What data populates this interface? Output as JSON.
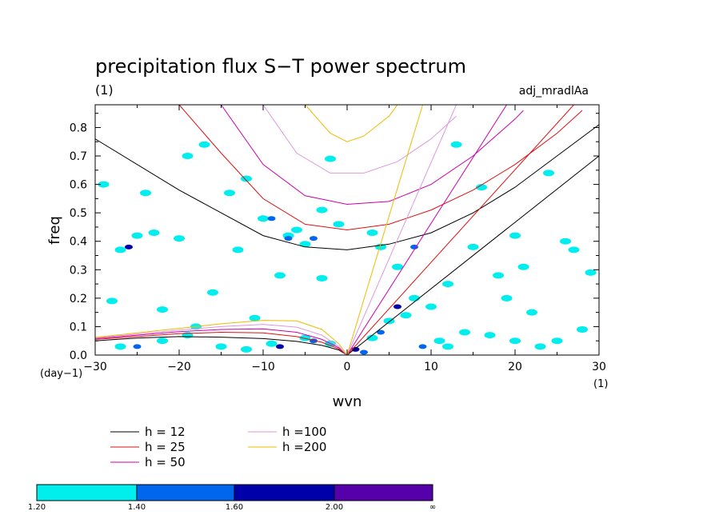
{
  "chart_data": {
    "type": "contour",
    "title": "precipitation flux S−T power spectrum",
    "subtitle": "(1)",
    "corner_label": "adj_mradlAa",
    "xlabel": "wvn",
    "ylabel": "freq",
    "x_unit": "(1)",
    "y_unit": "(day−1)",
    "xlim": [
      -30,
      30
    ],
    "ylim": [
      0,
      0.88
    ],
    "xticks": [
      -30,
      -20,
      -10,
      0,
      10,
      20,
      30
    ],
    "yticks": [
      0.0,
      0.1,
      0.2,
      0.3,
      0.4,
      0.5,
      0.6,
      0.7,
      0.8
    ],
    "xtick_labels": [
      "−30",
      "−20",
      "−10",
      "0",
      "10",
      "20",
      "30"
    ],
    "ytick_labels": [
      "0.0",
      "0.1",
      "0.2",
      "0.3",
      "0.4",
      "0.5",
      "0.6",
      "0.7",
      "0.8"
    ],
    "grid": false,
    "colors": {
      "h12": "#000000",
      "h25": "#dd1111",
      "h50": "#cc00aa",
      "h100": "#dd99dd",
      "h200": "#eebb00",
      "level1": "#00eeee",
      "level2": "#0066ee",
      "level3": "#0000aa",
      "level4": "#5500aa"
    },
    "dispersion_legend": [
      {
        "label": "h = 12",
        "color": "#000000"
      },
      {
        "label": "h = 25",
        "color": "#dd1111"
      },
      {
        "label": "h = 50",
        "color": "#cc00aa"
      },
      {
        "label": "h =100",
        "color": "#dd99dd"
      },
      {
        "label": "h =200",
        "color": "#eebb00"
      }
    ],
    "colorbar": {
      "levels": [
        "1.20",
        "1.40",
        "1.60",
        "2.00",
        "∞"
      ],
      "colors": [
        "#00eeee",
        "#0066ee",
        "#0000aa",
        "#5500aa"
      ]
    },
    "curves": [
      {
        "name": "h = 12",
        "color": "#000000",
        "points": [
          [
            -30,
            0.76
          ],
          [
            -20,
            0.58
          ],
          [
            -10,
            0.42
          ],
          [
            -5,
            0.38
          ],
          [
            0,
            0.37
          ],
          [
            5,
            0.39
          ],
          [
            10,
            0.43
          ],
          [
            15,
            0.5
          ],
          [
            20,
            0.59
          ],
          [
            25,
            0.7
          ],
          [
            30,
            0.81
          ]
        ]
      },
      {
        "name": "h = 25",
        "color": "#dd1111",
        "points": [
          [
            -20,
            0.88
          ],
          [
            -15,
            0.71
          ],
          [
            -10,
            0.55
          ],
          [
            -5,
            0.46
          ],
          [
            0,
            0.44
          ],
          [
            5,
            0.46
          ],
          [
            10,
            0.51
          ],
          [
            15,
            0.58
          ],
          [
            20,
            0.67
          ],
          [
            25,
            0.78
          ],
          [
            28,
            0.86
          ]
        ]
      },
      {
        "name": "h = 50",
        "color": "#cc00aa",
        "points": [
          [
            -15,
            0.88
          ],
          [
            -10,
            0.67
          ],
          [
            -5,
            0.56
          ],
          [
            0,
            0.53
          ],
          [
            5,
            0.54
          ],
          [
            10,
            0.6
          ],
          [
            15,
            0.7
          ],
          [
            20,
            0.83
          ],
          [
            21,
            0.86
          ]
        ]
      },
      {
        "name": "h =100",
        "color": "#dd99dd",
        "points": [
          [
            -10,
            0.88
          ],
          [
            -6,
            0.71
          ],
          [
            -2,
            0.64
          ],
          [
            2,
            0.64
          ],
          [
            6,
            0.68
          ],
          [
            10,
            0.76
          ],
          [
            13,
            0.84
          ]
        ]
      },
      {
        "name": "h =200",
        "color": "#eebb00",
        "points": [
          [
            -5,
            0.88
          ],
          [
            -2,
            0.78
          ],
          [
            0,
            0.75
          ],
          [
            2,
            0.77
          ],
          [
            5,
            0.84
          ],
          [
            6,
            0.88
          ]
        ]
      },
      {
        "name": "h = 12",
        "color": "#000000",
        "points": [
          [
            0,
            0.0
          ],
          [
            30,
            0.7
          ]
        ]
      },
      {
        "name": "h = 25",
        "color": "#dd1111",
        "points": [
          [
            0,
            0.0
          ],
          [
            27,
            0.88
          ]
        ]
      },
      {
        "name": "h = 50",
        "color": "#cc00aa",
        "points": [
          [
            0,
            0.0
          ],
          [
            19,
            0.88
          ]
        ]
      },
      {
        "name": "h =100",
        "color": "#dd99dd",
        "points": [
          [
            0,
            0.0
          ],
          [
            13,
            0.88
          ]
        ]
      },
      {
        "name": "h =200",
        "color": "#eebb00",
        "points": [
          [
            0,
            0.0
          ],
          [
            9,
            0.88
          ]
        ]
      },
      {
        "name": "h = 12",
        "color": "#000000",
        "points": [
          [
            -30,
            0.05
          ],
          [
            -25,
            0.06
          ],
          [
            -20,
            0.065
          ],
          [
            -15,
            0.063
          ],
          [
            -10,
            0.058
          ],
          [
            -6,
            0.048
          ],
          [
            -3,
            0.034
          ],
          [
            -1,
            0.018
          ],
          [
            0,
            0.0
          ]
        ]
      },
      {
        "name": "h = 25",
        "color": "#dd1111",
        "points": [
          [
            -30,
            0.055
          ],
          [
            -25,
            0.065
          ],
          [
            -20,
            0.075
          ],
          [
            -15,
            0.08
          ],
          [
            -10,
            0.078
          ],
          [
            -6,
            0.065
          ],
          [
            -3,
            0.045
          ],
          [
            -1,
            0.022
          ],
          [
            0,
            0.0
          ]
        ]
      },
      {
        "name": "h = 50",
        "color": "#cc00aa",
        "points": [
          [
            -30,
            0.058
          ],
          [
            -25,
            0.07
          ],
          [
            -20,
            0.082
          ],
          [
            -15,
            0.09
          ],
          [
            -10,
            0.092
          ],
          [
            -6,
            0.08
          ],
          [
            -3,
            0.055
          ],
          [
            -1,
            0.026
          ],
          [
            0,
            0.0
          ]
        ]
      },
      {
        "name": "h =100",
        "color": "#dd99dd",
        "points": [
          [
            -30,
            0.06
          ],
          [
            -25,
            0.074
          ],
          [
            -20,
            0.088
          ],
          [
            -15,
            0.1
          ],
          [
            -10,
            0.108
          ],
          [
            -6,
            0.098
          ],
          [
            -3,
            0.07
          ],
          [
            -1,
            0.03
          ],
          [
            0,
            0.0
          ]
        ]
      },
      {
        "name": "h =200",
        "color": "#eebb00",
        "points": [
          [
            -30,
            0.062
          ],
          [
            -25,
            0.078
          ],
          [
            -20,
            0.094
          ],
          [
            -15,
            0.11
          ],
          [
            -10,
            0.122
          ],
          [
            -6,
            0.12
          ],
          [
            -3,
            0.09
          ],
          [
            -1,
            0.04
          ],
          [
            0,
            0.0
          ]
        ]
      }
    ],
    "contour_blobs": [
      {
        "x": -29,
        "y": 0.6,
        "level": 1
      },
      {
        "x": -27,
        "y": 0.37,
        "level": 1
      },
      {
        "x": -26,
        "y": 0.38,
        "level": 3
      },
      {
        "x": -25,
        "y": 0.42,
        "level": 1
      },
      {
        "x": -24,
        "y": 0.57,
        "level": 1
      },
      {
        "x": -23,
        "y": 0.43,
        "level": 1
      },
      {
        "x": -22,
        "y": 0.16,
        "level": 1
      },
      {
        "x": -20,
        "y": 0.41,
        "level": 1
      },
      {
        "x": -19,
        "y": 0.7,
        "level": 1
      },
      {
        "x": -17,
        "y": 0.74,
        "level": 1
      },
      {
        "x": -16,
        "y": 0.22,
        "level": 1
      },
      {
        "x": -14,
        "y": 0.57,
        "level": 1
      },
      {
        "x": -13,
        "y": 0.37,
        "level": 1
      },
      {
        "x": -12,
        "y": 0.62,
        "level": 1
      },
      {
        "x": -11,
        "y": 0.13,
        "level": 1
      },
      {
        "x": -10,
        "y": 0.48,
        "level": 1
      },
      {
        "x": -9,
        "y": 0.48,
        "level": 2
      },
      {
        "x": -8,
        "y": 0.28,
        "level": 1
      },
      {
        "x": -7,
        "y": 0.42,
        "level": 1
      },
      {
        "x": -7,
        "y": 0.41,
        "level": 2
      },
      {
        "x": -6,
        "y": 0.44,
        "level": 1
      },
      {
        "x": -5,
        "y": 0.39,
        "level": 1
      },
      {
        "x": -4,
        "y": 0.41,
        "level": 2
      },
      {
        "x": -3,
        "y": 0.27,
        "level": 1
      },
      {
        "x": -3,
        "y": 0.51,
        "level": 1
      },
      {
        "x": -2,
        "y": 0.69,
        "level": 1
      },
      {
        "x": -1,
        "y": 0.46,
        "level": 1
      },
      {
        "x": 3,
        "y": 0.43,
        "level": 1
      },
      {
        "x": 4,
        "y": 0.38,
        "level": 1
      },
      {
        "x": 6,
        "y": 0.31,
        "level": 1
      },
      {
        "x": 8,
        "y": 0.38,
        "level": 2
      },
      {
        "x": 10,
        "y": 0.17,
        "level": 1
      },
      {
        "x": 12,
        "y": 0.25,
        "level": 1
      },
      {
        "x": 13,
        "y": 0.74,
        "level": 1
      },
      {
        "x": 15,
        "y": 0.38,
        "level": 1
      },
      {
        "x": 16,
        "y": 0.59,
        "level": 1
      },
      {
        "x": 18,
        "y": 0.28,
        "level": 1
      },
      {
        "x": 20,
        "y": 0.42,
        "level": 1
      },
      {
        "x": 21,
        "y": 0.31,
        "level": 1
      },
      {
        "x": 24,
        "y": 0.64,
        "level": 1
      },
      {
        "x": 26,
        "y": 0.4,
        "level": 1
      },
      {
        "x": 27,
        "y": 0.37,
        "level": 1
      },
      {
        "x": 28,
        "y": 0.09,
        "level": 1
      },
      {
        "x": 29,
        "y": 0.29,
        "level": 1
      },
      {
        "x": -27,
        "y": 0.03,
        "level": 1
      },
      {
        "x": -25,
        "y": 0.03,
        "level": 2
      },
      {
        "x": -22,
        "y": 0.05,
        "level": 1
      },
      {
        "x": -19,
        "y": 0.07,
        "level": 1
      },
      {
        "x": -15,
        "y": 0.03,
        "level": 1
      },
      {
        "x": -12,
        "y": 0.02,
        "level": 1
      },
      {
        "x": -9,
        "y": 0.04,
        "level": 1
      },
      {
        "x": -8,
        "y": 0.03,
        "level": 3
      },
      {
        "x": -5,
        "y": 0.06,
        "level": 1
      },
      {
        "x": -4,
        "y": 0.05,
        "level": 2
      },
      {
        "x": -2,
        "y": 0.04,
        "level": 1
      },
      {
        "x": 1,
        "y": 0.02,
        "level": 3
      },
      {
        "x": 2,
        "y": 0.01,
        "level": 2
      },
      {
        "x": 3,
        "y": 0.06,
        "level": 1
      },
      {
        "x": 4,
        "y": 0.08,
        "level": 2
      },
      {
        "x": 5,
        "y": 0.12,
        "level": 1
      },
      {
        "x": 6,
        "y": 0.17,
        "level": 3
      },
      {
        "x": 7,
        "y": 0.14,
        "level": 1
      },
      {
        "x": 8,
        "y": 0.2,
        "level": 1
      },
      {
        "x": 9,
        "y": 0.03,
        "level": 2
      },
      {
        "x": 11,
        "y": 0.05,
        "level": 1
      },
      {
        "x": 12,
        "y": 0.03,
        "level": 1
      },
      {
        "x": 14,
        "y": 0.08,
        "level": 1
      },
      {
        "x": 17,
        "y": 0.07,
        "level": 1
      },
      {
        "x": 20,
        "y": 0.05,
        "level": 1
      },
      {
        "x": 23,
        "y": 0.03,
        "level": 1
      },
      {
        "x": 25,
        "y": 0.05,
        "level": 1
      },
      {
        "x": -18,
        "y": 0.1,
        "level": 1
      },
      {
        "x": 22,
        "y": 0.15,
        "level": 1
      },
      {
        "x": -28,
        "y": 0.19,
        "level": 1
      },
      {
        "x": 19,
        "y": 0.2,
        "level": 1
      }
    ]
  }
}
